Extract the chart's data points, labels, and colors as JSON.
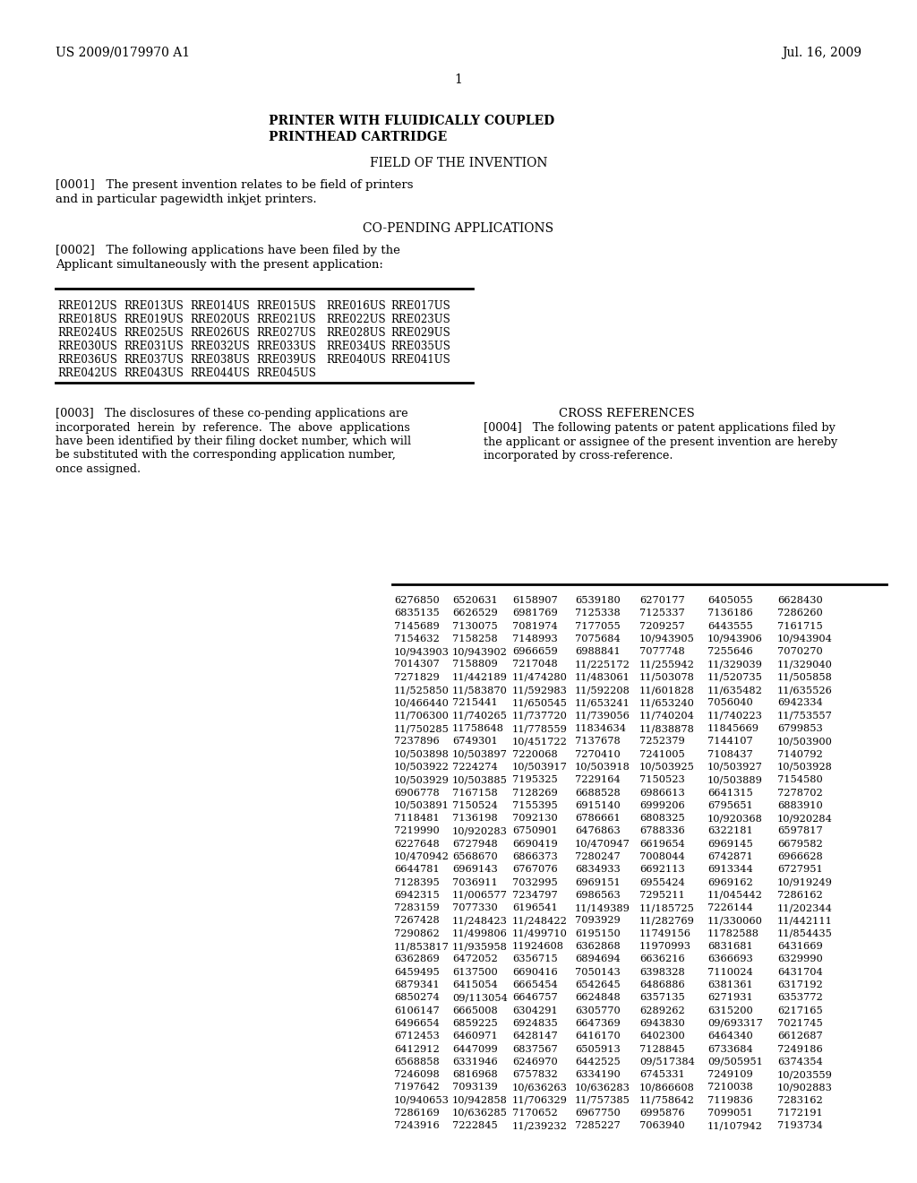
{
  "background_color": "#ffffff",
  "header_left": "US 2009/0179970 A1",
  "header_right": "Jul. 16, 2009",
  "page_number": "1",
  "title_line1": "PRINTER WITH FLUIDICALLY COUPLED",
  "title_line2": "PRINTHEAD CARTRIDGE",
  "section1": "FIELD OF THE INVENTION",
  "para0001_line1": "[0001]   The present invention relates to be field of printers",
  "para0001_line2": "and in particular pagewidth inkjet printers.",
  "section2": "CO-PENDING APPLICATIONS",
  "para0002_line1": "[0002]   The following applications have been filed by the",
  "para0002_line2": "Applicant simultaneously with the present application:",
  "rre_table": [
    [
      "RRE012US",
      "RRE013US",
      "RRE014US",
      "RRE015US",
      "RRE016US",
      "RRE017US"
    ],
    [
      "RRE018US",
      "RRE019US",
      "RRE020US",
      "RRE021US",
      "RRE022US",
      "RRE023US"
    ],
    [
      "RRE024US",
      "RRE025US",
      "RRE026US",
      "RRE027US",
      "RRE028US",
      "RRE029US"
    ],
    [
      "RRE030US",
      "RRE031US",
      "RRE032US",
      "RRE033US",
      "RRE034US",
      "RRE035US"
    ],
    [
      "RRE036US",
      "RRE037US",
      "RRE038US",
      "RRE039US",
      "RRE040US",
      "RRE041US"
    ],
    [
      "RRE042US",
      "RRE043US",
      "RRE044US",
      "RRE045US",
      "",
      ""
    ]
  ],
  "para0003": [
    "[0003]   The disclosures of these co-pending applications are",
    "incorporated  herein  by  reference.  The  above  applications",
    "have been identified by their filing docket number, which will",
    "be substituted with the corresponding application number,",
    "once assigned."
  ],
  "section3": "CROSS REFERENCES",
  "para0004": [
    "[0004]   The following patents or patent applications filed by",
    "the applicant or assignee of the present invention are hereby",
    "incorporated by cross-reference."
  ],
  "numbers_table": [
    [
      "6276850",
      "6520631",
      "6158907",
      "6539180",
      "6270177",
      "6405055",
      "6628430"
    ],
    [
      "6835135",
      "6626529",
      "6981769",
      "7125338",
      "7125337",
      "7136186",
      "7286260"
    ],
    [
      "7145689",
      "7130075",
      "7081974",
      "7177055",
      "7209257",
      "6443555",
      "7161715"
    ],
    [
      "7154632",
      "7158258",
      "7148993",
      "7075684",
      "10/943905",
      "10/943906",
      "10/943904"
    ],
    [
      "10/943903",
      "10/943902",
      "6966659",
      "6988841",
      "7077748",
      "7255646",
      "7070270"
    ],
    [
      "7014307",
      "7158809",
      "7217048",
      "11/225172",
      "11/255942",
      "11/329039",
      "11/329040"
    ],
    [
      "7271829",
      "11/442189",
      "11/474280",
      "11/483061",
      "11/503078",
      "11/520735",
      "11/505858"
    ],
    [
      "11/525850",
      "11/583870",
      "11/592983",
      "11/592208",
      "11/601828",
      "11/635482",
      "11/635526"
    ],
    [
      "10/466440",
      "7215441",
      "11/650545",
      "11/653241",
      "11/653240",
      "7056040",
      "6942334"
    ],
    [
      "11/706300",
      "11/740265",
      "11/737720",
      "11/739056",
      "11/740204",
      "11/740223",
      "11/753557"
    ],
    [
      "11/750285",
      "11758648",
      "11/778559",
      "11834634",
      "11/838878",
      "11845669",
      "6799853"
    ],
    [
      "7237896",
      "6749301",
      "10/451722",
      "7137678",
      "7252379",
      "7144107",
      "10/503900"
    ],
    [
      "10/503898",
      "10/503897",
      "7220068",
      "7270410",
      "7241005",
      "7108437",
      "7140792"
    ],
    [
      "10/503922",
      "7224274",
      "10/503917",
      "10/503918",
      "10/503925",
      "10/503927",
      "10/503928"
    ],
    [
      "10/503929",
      "10/503885",
      "7195325",
      "7229164",
      "7150523",
      "10/503889",
      "7154580"
    ],
    [
      "6906778",
      "7167158",
      "7128269",
      "6688528",
      "6986613",
      "6641315",
      "7278702"
    ],
    [
      "10/503891",
      "7150524",
      "7155395",
      "6915140",
      "6999206",
      "6795651",
      "6883910"
    ],
    [
      "7118481",
      "7136198",
      "7092130",
      "6786661",
      "6808325",
      "10/920368",
      "10/920284"
    ],
    [
      "7219990",
      "10/920283",
      "6750901",
      "6476863",
      "6788336",
      "6322181",
      "6597817"
    ],
    [
      "6227648",
      "6727948",
      "6690419",
      "10/470947",
      "6619654",
      "6969145",
      "6679582"
    ],
    [
      "10/470942",
      "6568670",
      "6866373",
      "7280247",
      "7008044",
      "6742871",
      "6966628"
    ],
    [
      "6644781",
      "6969143",
      "6767076",
      "6834933",
      "6692113",
      "6913344",
      "6727951"
    ],
    [
      "7128395",
      "7036911",
      "7032995",
      "6969151",
      "6955424",
      "6969162",
      "10/919249"
    ],
    [
      "6942315",
      "11/006577",
      "7234797",
      "6986563",
      "7295211",
      "11/045442",
      "7286162"
    ],
    [
      "7283159",
      "7077330",
      "6196541",
      "11/149389",
      "11/185725",
      "7226144",
      "11/202344"
    ],
    [
      "7267428",
      "11/248423",
      "11/248422",
      "7093929",
      "11/282769",
      "11/330060",
      "11/442111"
    ],
    [
      "7290862",
      "11/499806",
      "11/499710",
      "6195150",
      "11749156",
      "11782588",
      "11/854435"
    ],
    [
      "11/853817",
      "11/935958",
      "11924608",
      "6362868",
      "11970993",
      "6831681",
      "6431669"
    ],
    [
      "6362869",
      "6472052",
      "6356715",
      "6894694",
      "6636216",
      "6366693",
      "6329990"
    ],
    [
      "6459495",
      "6137500",
      "6690416",
      "7050143",
      "6398328",
      "7110024",
      "6431704"
    ],
    [
      "6879341",
      "6415054",
      "6665454",
      "6542645",
      "6486886",
      "6381361",
      "6317192"
    ],
    [
      "6850274",
      "09/113054",
      "6646757",
      "6624848",
      "6357135",
      "6271931",
      "6353772"
    ],
    [
      "6106147",
      "6665008",
      "6304291",
      "6305770",
      "6289262",
      "6315200",
      "6217165"
    ],
    [
      "6496654",
      "6859225",
      "6924835",
      "6647369",
      "6943830",
      "09/693317",
      "7021745"
    ],
    [
      "6712453",
      "6460971",
      "6428147",
      "6416170",
      "6402300",
      "6464340",
      "6612687"
    ],
    [
      "6412912",
      "6447099",
      "6837567",
      "6505913",
      "7128845",
      "6733684",
      "7249186"
    ],
    [
      "6568858",
      "6331946",
      "6246970",
      "6442525",
      "09/517384",
      "09/505951",
      "6374354"
    ],
    [
      "7246098",
      "6816968",
      "6757832",
      "6334190",
      "6745331",
      "7249109",
      "10/203559"
    ],
    [
      "7197642",
      "7093139",
      "10/636263",
      "10/636283",
      "10/866608",
      "7210038",
      "10/902883"
    ],
    [
      "10/940653",
      "10/942858",
      "11/706329",
      "11/757385",
      "11/758642",
      "7119836",
      "7283162"
    ],
    [
      "7286169",
      "10/636285",
      "7170652",
      "6967750",
      "6995876",
      "7099051",
      "7172191"
    ],
    [
      "7243916",
      "7222845",
      "11/239232",
      "7285227",
      "7063940",
      "11/107942",
      "7193734"
    ]
  ]
}
